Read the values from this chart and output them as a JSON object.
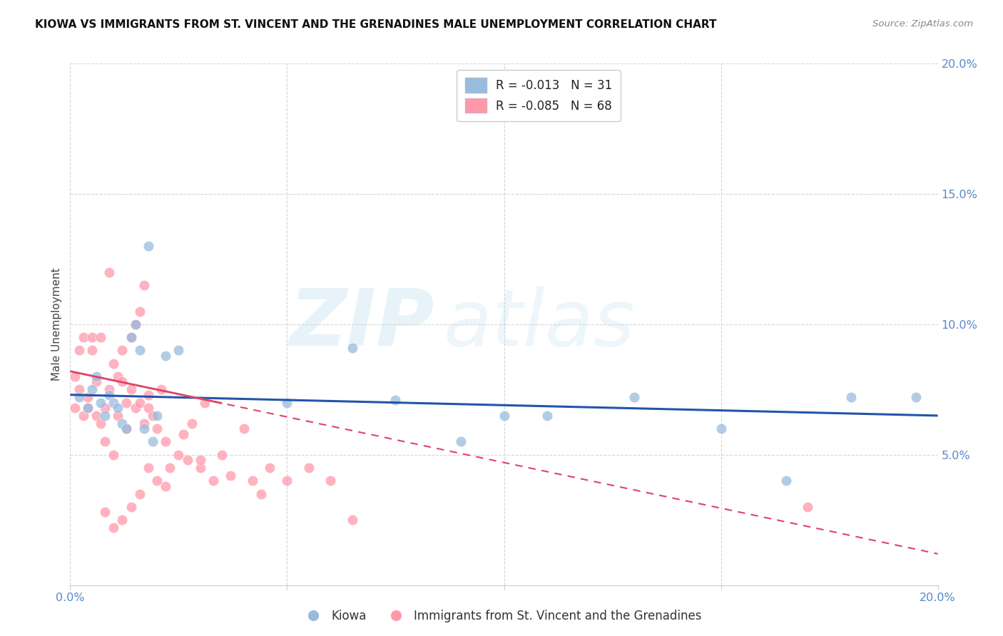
{
  "title": "KIOWA VS IMMIGRANTS FROM ST. VINCENT AND THE GRENADINES MALE UNEMPLOYMENT CORRELATION CHART",
  "source": "Source: ZipAtlas.com",
  "ylabel": "Male Unemployment",
  "xlim": [
    0.0,
    0.2
  ],
  "ylim": [
    0.0,
    0.2
  ],
  "xticks": [
    0.0,
    0.05,
    0.1,
    0.15,
    0.2
  ],
  "yticks": [
    0.0,
    0.05,
    0.1,
    0.15,
    0.2
  ],
  "kiowa_R": -0.013,
  "kiowa_N": 31,
  "svg_R": -0.085,
  "svg_N": 68,
  "legend_label_1": "Kiowa",
  "legend_label_2": "Immigrants from St. Vincent and the Grenadines",
  "blue_color": "#99BBDD",
  "pink_color": "#FF99AA",
  "blue_line_color": "#2255AA",
  "pink_line_color": "#DD4466",
  "blue_fill_color": "#DDEEFF",
  "pink_fill_color": "#FFDDEE",
  "kiowa_x": [
    0.002,
    0.004,
    0.005,
    0.006,
    0.007,
    0.008,
    0.009,
    0.01,
    0.011,
    0.012,
    0.013,
    0.014,
    0.015,
    0.016,
    0.017,
    0.018,
    0.019,
    0.02,
    0.022,
    0.025,
    0.05,
    0.065,
    0.075,
    0.09,
    0.1,
    0.11,
    0.13,
    0.15,
    0.165,
    0.18,
    0.195
  ],
  "kiowa_y": [
    0.072,
    0.068,
    0.075,
    0.08,
    0.07,
    0.065,
    0.073,
    0.07,
    0.068,
    0.062,
    0.06,
    0.095,
    0.1,
    0.09,
    0.06,
    0.13,
    0.055,
    0.065,
    0.088,
    0.09,
    0.07,
    0.091,
    0.071,
    0.055,
    0.065,
    0.065,
    0.072,
    0.06,
    0.04,
    0.072,
    0.072
  ],
  "svg_x": [
    0.001,
    0.001,
    0.002,
    0.002,
    0.003,
    0.003,
    0.004,
    0.004,
    0.005,
    0.005,
    0.006,
    0.006,
    0.007,
    0.007,
    0.008,
    0.008,
    0.009,
    0.009,
    0.01,
    0.01,
    0.011,
    0.011,
    0.012,
    0.012,
    0.013,
    0.013,
    0.014,
    0.014,
    0.015,
    0.015,
    0.016,
    0.016,
    0.017,
    0.017,
    0.018,
    0.018,
    0.019,
    0.02,
    0.021,
    0.022,
    0.023,
    0.025,
    0.026,
    0.027,
    0.028,
    0.03,
    0.031,
    0.033,
    0.035,
    0.037,
    0.04,
    0.042,
    0.044,
    0.046,
    0.05,
    0.055,
    0.06,
    0.065,
    0.17,
    0.03,
    0.018,
    0.02,
    0.022,
    0.012,
    0.014,
    0.016,
    0.008,
    0.01
  ],
  "svg_y": [
    0.08,
    0.068,
    0.075,
    0.09,
    0.065,
    0.095,
    0.072,
    0.068,
    0.09,
    0.095,
    0.078,
    0.065,
    0.062,
    0.095,
    0.068,
    0.055,
    0.075,
    0.12,
    0.085,
    0.05,
    0.08,
    0.065,
    0.09,
    0.078,
    0.07,
    0.06,
    0.095,
    0.075,
    0.1,
    0.068,
    0.105,
    0.07,
    0.115,
    0.062,
    0.073,
    0.068,
    0.065,
    0.06,
    0.075,
    0.055,
    0.045,
    0.05,
    0.058,
    0.048,
    0.062,
    0.045,
    0.07,
    0.04,
    0.05,
    0.042,
    0.06,
    0.04,
    0.035,
    0.045,
    0.04,
    0.045,
    0.04,
    0.025,
    0.03,
    0.048,
    0.045,
    0.04,
    0.038,
    0.025,
    0.03,
    0.035,
    0.028,
    0.022
  ]
}
